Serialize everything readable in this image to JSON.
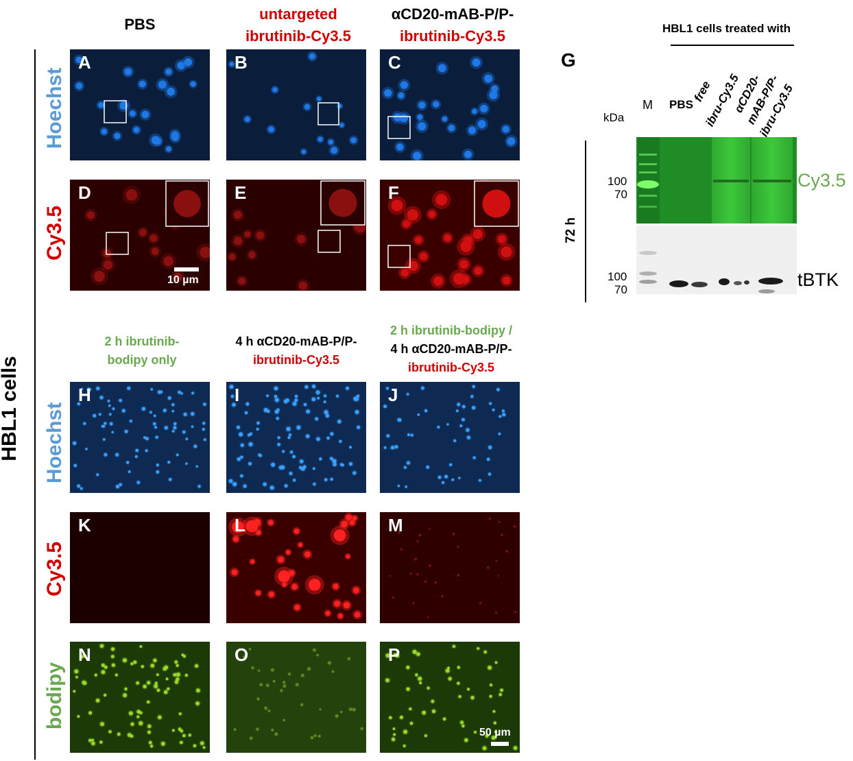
{
  "columns_top": {
    "pbs": "PBS",
    "untargeted": [
      "untargeted",
      "ibrutinib-Cy3.5"
    ],
    "targeted": [
      "αCD20-mAB-P/P-",
      "ibrutinib-Cy3.5"
    ]
  },
  "columns_bottom": {
    "bodipy_only": [
      "2 h ibrutinib-",
      "bodipy only"
    ],
    "cy35_4h": [
      "4 h αCD20-mAB-P/P-",
      "ibrutinib-Cy3.5"
    ],
    "combo": [
      "2 h ibrutinib-bodipy /",
      "4 h αCD20-mAB-P/P-",
      "ibrutinib-Cy3.5"
    ]
  },
  "row_labels": {
    "hoechst": "Hoechst",
    "cy35": "Cy3.5",
    "bodipy": "bodipy",
    "cells": "HBL1 cells"
  },
  "panel_letters": [
    "A",
    "B",
    "C",
    "D",
    "E",
    "F",
    "H",
    "I",
    "J",
    "K",
    "L",
    "M",
    "N",
    "O",
    "P"
  ],
  "scale_bars": {
    "top": "10 µm",
    "bottom": "50 µm"
  },
  "western_blot": {
    "letter": "G",
    "header": "HBL1 cells treated with",
    "marker_lane": "M",
    "kda_label": "kDa",
    "lanes": [
      "PBS",
      "free",
      "ibru-Cy3.5",
      "αCD20-",
      "mAB-P/P-",
      "ibru-Cy3.5"
    ],
    "time": "72 h",
    "mw_top": [
      "100",
      "70"
    ],
    "mw_bottom": [
      "100",
      "70"
    ],
    "band_top": "Cy3.5",
    "band_bottom": "tBTK"
  },
  "colors": {
    "hoechst_bg": "#0a1e3c",
    "hoechst_cell": "#1e78e6",
    "cy35_bg": "#2a0000",
    "cy35_cell": "#d01010",
    "bodipy_bg": "#1c3a08",
    "bodipy_cell": "#9ad82a",
    "label_blue": "#5a9bd5",
    "label_red": "#d00000",
    "label_green": "#6aa84f"
  }
}
